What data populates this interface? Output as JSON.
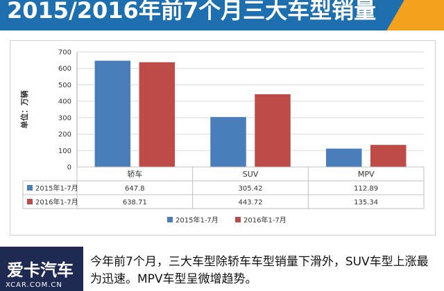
{
  "header": {
    "title": "2015/2016年前7个月三大车型销量"
  },
  "chart_data": {
    "type": "bar",
    "categories": [
      "轿车",
      "SUV",
      "MPV"
    ],
    "series": [
      {
        "name": "2015年1-7月",
        "values": [
          647.8,
          305.42,
          112.89
        ],
        "color": "#4a7ebb",
        "value_labels": [
          "647.8",
          "305.42",
          "112.89"
        ]
      },
      {
        "name": "2016年1-7月",
        "values": [
          638.71,
          443.72,
          135.34
        ],
        "color": "#be4b48",
        "value_labels": [
          "638.71",
          "443.72",
          "135.34"
        ]
      }
    ],
    "ylabel": "单位：万辆",
    "ylim": [
      0,
      700
    ],
    "yticks": [
      "0",
      "100",
      "200",
      "300",
      "400",
      "500",
      "600",
      "700"
    ],
    "data_table": true,
    "legend": "bottom"
  },
  "footer": {
    "logo_cn": "爱卡汽车",
    "logo_en": "XCAR.COM.CN",
    "caption": "今年前7个月，三大车型除轿车车型销量下滑外，SUV车型上涨最为迅速。MPV车型呈微增趋势。"
  }
}
